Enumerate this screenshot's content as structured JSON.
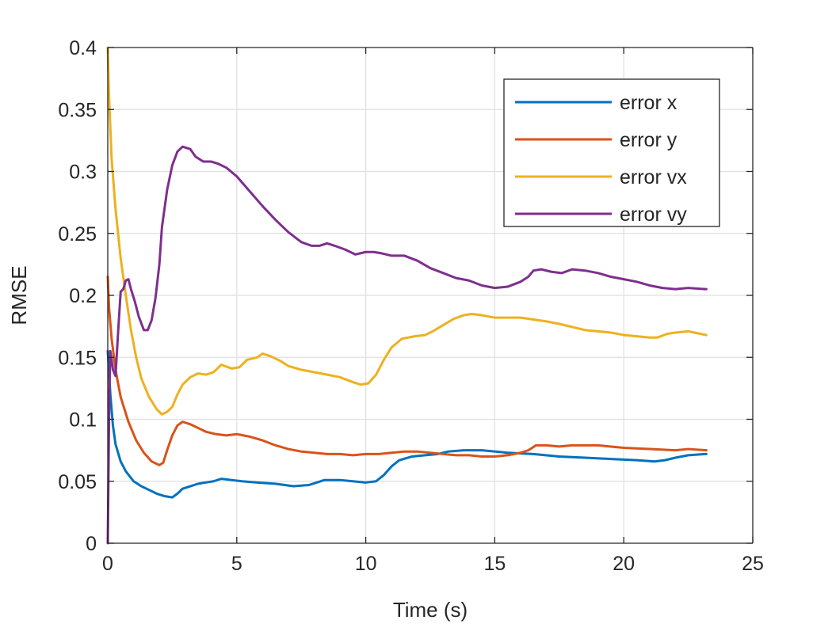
{
  "chart_data": {
    "type": "line",
    "title": "",
    "xlabel": "Time (s)",
    "ylabel": "RMSE",
    "xlim": [
      0,
      25
    ],
    "ylim": [
      0,
      0.4
    ],
    "xticks": [
      0,
      5,
      10,
      15,
      20,
      25
    ],
    "yticks": [
      0,
      0.05,
      0.1,
      0.15,
      0.2,
      0.25,
      0.3,
      0.35,
      0.4
    ],
    "xtick_labels": [
      "0",
      "5",
      "10",
      "15",
      "20",
      "25"
    ],
    "ytick_labels": [
      "0",
      "0.05",
      "0.1",
      "0.15",
      "0.2",
      "0.25",
      "0.3",
      "0.35",
      "0.4"
    ],
    "grid": true,
    "box": true,
    "legend_position": "top-right",
    "series": [
      {
        "name": "error x",
        "color": "#0072bd",
        "points": [
          [
            0,
            0.155
          ],
          [
            0.1,
            0.12
          ],
          [
            0.2,
            0.095
          ],
          [
            0.3,
            0.08
          ],
          [
            0.5,
            0.066
          ],
          [
            0.7,
            0.058
          ],
          [
            1.0,
            0.05
          ],
          [
            1.3,
            0.046
          ],
          [
            1.6,
            0.043
          ],
          [
            1.9,
            0.04
          ],
          [
            2.2,
            0.038
          ],
          [
            2.5,
            0.037
          ],
          [
            2.7,
            0.04
          ],
          [
            2.9,
            0.044
          ],
          [
            3.2,
            0.046
          ],
          [
            3.5,
            0.048
          ],
          [
            3.8,
            0.049
          ],
          [
            4.1,
            0.05
          ],
          [
            4.4,
            0.052
          ],
          [
            4.8,
            0.051
          ],
          [
            5.2,
            0.05
          ],
          [
            5.8,
            0.049
          ],
          [
            6.5,
            0.048
          ],
          [
            7.2,
            0.046
          ],
          [
            7.8,
            0.047
          ],
          [
            8.1,
            0.049
          ],
          [
            8.4,
            0.051
          ],
          [
            9.0,
            0.051
          ],
          [
            9.5,
            0.05
          ],
          [
            10.0,
            0.049
          ],
          [
            10.4,
            0.05
          ],
          [
            10.7,
            0.055
          ],
          [
            11.0,
            0.062
          ],
          [
            11.3,
            0.067
          ],
          [
            11.8,
            0.07
          ],
          [
            12.3,
            0.071
          ],
          [
            12.8,
            0.072
          ],
          [
            13.2,
            0.074
          ],
          [
            13.8,
            0.075
          ],
          [
            14.5,
            0.075
          ],
          [
            15.5,
            0.073
          ],
          [
            16.5,
            0.072
          ],
          [
            17.5,
            0.07
          ],
          [
            18.5,
            0.069
          ],
          [
            19.5,
            0.068
          ],
          [
            20.5,
            0.067
          ],
          [
            21.2,
            0.066
          ],
          [
            21.6,
            0.067
          ],
          [
            22.0,
            0.069
          ],
          [
            22.5,
            0.071
          ],
          [
            23.2,
            0.072
          ]
        ]
      },
      {
        "name": "error y",
        "color": "#d95319",
        "points": [
          [
            0,
            0.215
          ],
          [
            0.05,
            0.19
          ],
          [
            0.15,
            0.165
          ],
          [
            0.3,
            0.14
          ],
          [
            0.5,
            0.118
          ],
          [
            0.8,
            0.098
          ],
          [
            1.1,
            0.083
          ],
          [
            1.4,
            0.073
          ],
          [
            1.7,
            0.066
          ],
          [
            2.0,
            0.063
          ],
          [
            2.15,
            0.065
          ],
          [
            2.3,
            0.075
          ],
          [
            2.5,
            0.087
          ],
          [
            2.7,
            0.095
          ],
          [
            2.9,
            0.098
          ],
          [
            3.2,
            0.096
          ],
          [
            3.5,
            0.093
          ],
          [
            3.8,
            0.09
          ],
          [
            4.2,
            0.088
          ],
          [
            4.6,
            0.087
          ],
          [
            5.0,
            0.088
          ],
          [
            5.5,
            0.086
          ],
          [
            6.0,
            0.083
          ],
          [
            6.5,
            0.079
          ],
          [
            7.0,
            0.076
          ],
          [
            7.5,
            0.074
          ],
          [
            8.0,
            0.073
          ],
          [
            8.5,
            0.072
          ],
          [
            9.0,
            0.072
          ],
          [
            9.5,
            0.071
          ],
          [
            10.0,
            0.072
          ],
          [
            10.5,
            0.072
          ],
          [
            11.0,
            0.073
          ],
          [
            11.5,
            0.074
          ],
          [
            12.0,
            0.074
          ],
          [
            12.5,
            0.073
          ],
          [
            13.0,
            0.072
          ],
          [
            13.5,
            0.071
          ],
          [
            14.0,
            0.071
          ],
          [
            14.5,
            0.07
          ],
          [
            15.0,
            0.07
          ],
          [
            15.5,
            0.071
          ],
          [
            16.0,
            0.073
          ],
          [
            16.3,
            0.075
          ],
          [
            16.6,
            0.079
          ],
          [
            17.0,
            0.079
          ],
          [
            17.5,
            0.078
          ],
          [
            18.0,
            0.079
          ],
          [
            18.5,
            0.079
          ],
          [
            19.0,
            0.079
          ],
          [
            20.0,
            0.077
          ],
          [
            21.0,
            0.076
          ],
          [
            22.0,
            0.075
          ],
          [
            22.5,
            0.076
          ],
          [
            23.2,
            0.075
          ]
        ]
      },
      {
        "name": "error vx",
        "color": "#edb120",
        "points": [
          [
            0,
            0.4
          ],
          [
            0.05,
            0.36
          ],
          [
            0.15,
            0.31
          ],
          [
            0.3,
            0.27
          ],
          [
            0.5,
            0.23
          ],
          [
            0.7,
            0.2
          ],
          [
            0.9,
            0.172
          ],
          [
            1.1,
            0.15
          ],
          [
            1.3,
            0.133
          ],
          [
            1.6,
            0.118
          ],
          [
            1.9,
            0.108
          ],
          [
            2.1,
            0.104
          ],
          [
            2.3,
            0.106
          ],
          [
            2.5,
            0.11
          ],
          [
            2.7,
            0.12
          ],
          [
            2.9,
            0.128
          ],
          [
            3.2,
            0.134
          ],
          [
            3.5,
            0.137
          ],
          [
            3.8,
            0.136
          ],
          [
            4.1,
            0.138
          ],
          [
            4.4,
            0.144
          ],
          [
            4.8,
            0.141
          ],
          [
            5.1,
            0.142
          ],
          [
            5.4,
            0.148
          ],
          [
            5.8,
            0.15
          ],
          [
            6.0,
            0.153
          ],
          [
            6.3,
            0.151
          ],
          [
            6.7,
            0.147
          ],
          [
            7.0,
            0.143
          ],
          [
            7.5,
            0.14
          ],
          [
            8.0,
            0.138
          ],
          [
            8.5,
            0.136
          ],
          [
            9.0,
            0.134
          ],
          [
            9.5,
            0.13
          ],
          [
            9.8,
            0.128
          ],
          [
            10.1,
            0.129
          ],
          [
            10.4,
            0.136
          ],
          [
            10.7,
            0.148
          ],
          [
            11.0,
            0.158
          ],
          [
            11.4,
            0.165
          ],
          [
            11.9,
            0.167
          ],
          [
            12.3,
            0.168
          ],
          [
            12.6,
            0.171
          ],
          [
            13.0,
            0.176
          ],
          [
            13.4,
            0.181
          ],
          [
            13.8,
            0.184
          ],
          [
            14.1,
            0.185
          ],
          [
            14.5,
            0.184
          ],
          [
            15.0,
            0.182
          ],
          [
            16.0,
            0.182
          ],
          [
            17.0,
            0.179
          ],
          [
            17.5,
            0.177
          ],
          [
            18.5,
            0.172
          ],
          [
            19.5,
            0.17
          ],
          [
            20.0,
            0.168
          ],
          [
            20.5,
            0.167
          ],
          [
            21.0,
            0.166
          ],
          [
            21.3,
            0.166
          ],
          [
            21.7,
            0.169
          ],
          [
            22.0,
            0.17
          ],
          [
            22.5,
            0.171
          ],
          [
            23.2,
            0.168
          ]
        ]
      },
      {
        "name": "error vy",
        "color": "#7e2f8e",
        "points": [
          [
            0,
            0.0
          ],
          [
            0.03,
            0.06
          ],
          [
            0.06,
            0.12
          ],
          [
            0.1,
            0.155
          ],
          [
            0.2,
            0.14
          ],
          [
            0.3,
            0.135
          ],
          [
            0.4,
            0.17
          ],
          [
            0.5,
            0.203
          ],
          [
            0.6,
            0.205
          ],
          [
            0.7,
            0.212
          ],
          [
            0.8,
            0.213
          ],
          [
            0.9,
            0.205
          ],
          [
            1.05,
            0.195
          ],
          [
            1.2,
            0.183
          ],
          [
            1.4,
            0.172
          ],
          [
            1.55,
            0.172
          ],
          [
            1.7,
            0.18
          ],
          [
            1.85,
            0.198
          ],
          [
            2.0,
            0.225
          ],
          [
            2.1,
            0.255
          ],
          [
            2.3,
            0.285
          ],
          [
            2.5,
            0.305
          ],
          [
            2.7,
            0.316
          ],
          [
            2.9,
            0.32
          ],
          [
            3.2,
            0.318
          ],
          [
            3.4,
            0.312
          ],
          [
            3.7,
            0.308
          ],
          [
            4.0,
            0.308
          ],
          [
            4.3,
            0.306
          ],
          [
            4.6,
            0.303
          ],
          [
            5.0,
            0.296
          ],
          [
            5.5,
            0.284
          ],
          [
            6.0,
            0.272
          ],
          [
            6.5,
            0.261
          ],
          [
            7.0,
            0.251
          ],
          [
            7.5,
            0.243
          ],
          [
            7.9,
            0.24
          ],
          [
            8.2,
            0.24
          ],
          [
            8.5,
            0.242
          ],
          [
            8.8,
            0.24
          ],
          [
            9.2,
            0.237
          ],
          [
            9.6,
            0.233
          ],
          [
            10.0,
            0.235
          ],
          [
            10.3,
            0.235
          ],
          [
            10.6,
            0.234
          ],
          [
            11.0,
            0.232
          ],
          [
            11.5,
            0.232
          ],
          [
            12.0,
            0.228
          ],
          [
            12.5,
            0.222
          ],
          [
            13.0,
            0.218
          ],
          [
            13.5,
            0.214
          ],
          [
            14.0,
            0.212
          ],
          [
            14.5,
            0.208
          ],
          [
            15.0,
            0.206
          ],
          [
            15.5,
            0.207
          ],
          [
            16.0,
            0.211
          ],
          [
            16.3,
            0.215
          ],
          [
            16.5,
            0.22
          ],
          [
            16.8,
            0.221
          ],
          [
            17.2,
            0.219
          ],
          [
            17.6,
            0.218
          ],
          [
            18.0,
            0.221
          ],
          [
            18.5,
            0.22
          ],
          [
            19.0,
            0.218
          ],
          [
            19.5,
            0.215
          ],
          [
            20.0,
            0.213
          ],
          [
            20.5,
            0.211
          ],
          [
            21.0,
            0.208
          ],
          [
            21.5,
            0.206
          ],
          [
            22.0,
            0.205
          ],
          [
            22.5,
            0.206
          ],
          [
            23.2,
            0.205
          ]
        ]
      }
    ]
  }
}
